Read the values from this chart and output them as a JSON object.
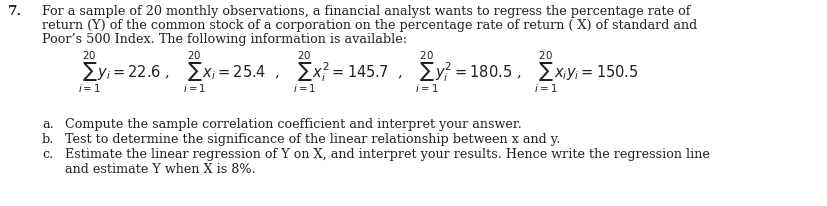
{
  "question_number": "7.",
  "main_text_line1": "For a sample of 20 monthly observations, a financial analyst wants to regress the percentage rate of",
  "main_text_line2": "return (Y) of the common stock of a corporation on the percentage rate of return ( X) of standard and",
  "main_text_line3": "Poor’s 500 Index. The following information is available:",
  "part_a": "Compute the sample correlation coefficient and interpret your answer.",
  "part_b": "Test to determine the significance of the linear relationship between x and y.",
  "part_c": "Estimate the linear regression of Y on X, and interpret your results. Hence write the regression line",
  "part_c2": "and estimate Y when X is 8%.",
  "bg_color": "#ffffff",
  "text_color": "#231f20",
  "font_size": 9.2,
  "formula_fontsize": 10.5
}
